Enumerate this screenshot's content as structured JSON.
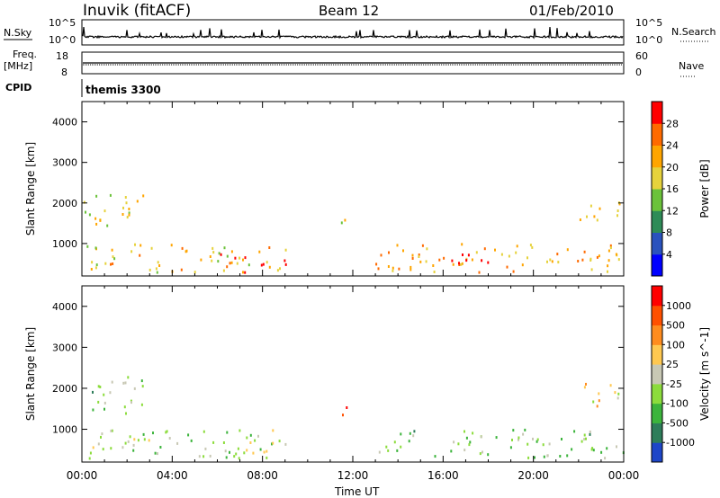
{
  "header": {
    "station": "Inuvik (fitACF)",
    "beam": "Beam 12",
    "date": "01/Feb/2010"
  },
  "nsky_panel": {
    "left_label": "N.Sky",
    "right_label": "N.Search",
    "left_ticks": [
      "10^5",
      "10^0"
    ],
    "right_ticks": [
      "10^5",
      "10^0"
    ]
  },
  "freq_panel": {
    "left_label_1": "Freq.",
    "left_label_2": "[MHz]",
    "right_label": "Nave",
    "left_ticks": [
      "18",
      "8"
    ],
    "right_ticks": [
      "60",
      "0"
    ]
  },
  "cpid_panel": {
    "label": "CPID",
    "value": "themis 3300"
  },
  "chart_data": [
    {
      "type": "heatmap",
      "title": "",
      "xlabel": "Time UT",
      "ylabel": "Slant Range [km]",
      "x_ticks": [
        "00:00",
        "04:00",
        "08:00",
        "12:00",
        "16:00",
        "20:00",
        "00:00"
      ],
      "y_ticks": [
        "1000",
        "2000",
        "3000",
        "4000"
      ],
      "ylim": [
        200,
        4500
      ],
      "colorbar_label": "Power [dB]",
      "colorbar_ticks": [
        "4",
        "8",
        "12",
        "16",
        "20",
        "24",
        "28"
      ],
      "colorbar_range": [
        0,
        32
      ],
      "colorbar_colors": [
        "#0000ff",
        "#2a52be",
        "#2e8b57",
        "#6bc23a",
        "#e6d23c",
        "#ffa500",
        "#ff6a00",
        "#ff0000"
      ],
      "scatter_regions": [
        {
          "t": [
            0.0,
            2.7
          ],
          "r": [
            1350,
            2300
          ],
          "v": 18
        },
        {
          "t": [
            0.0,
            9.0
          ],
          "r": [
            250,
            950
          ],
          "v": 20
        },
        {
          "t": [
            6.0,
            9.0
          ],
          "r": [
            250,
            700
          ],
          "v": 28
        },
        {
          "t": [
            11.3,
            11.7
          ],
          "r": [
            1200,
            1700
          ],
          "v": 18
        },
        {
          "t": [
            13.0,
            24.0
          ],
          "r": [
            250,
            950
          ],
          "v": 22
        },
        {
          "t": [
            15.5,
            18.0
          ],
          "r": [
            250,
            800
          ],
          "v": 28
        },
        {
          "t": [
            22.0,
            24.0
          ],
          "r": [
            1500,
            2100
          ],
          "v": 16
        }
      ]
    },
    {
      "type": "heatmap",
      "title": "",
      "xlabel": "Time UT",
      "ylabel": "Slant Range [km]",
      "x_ticks": [
        "00:00",
        "04:00",
        "08:00",
        "12:00",
        "16:00",
        "20:00",
        "00:00"
      ],
      "y_ticks": [
        "1000",
        "2000",
        "3000",
        "4000"
      ],
      "ylim": [
        200,
        4500
      ],
      "colorbar_label": "Velocity [m s^-1]",
      "colorbar_ticks": [
        "1000",
        "500",
        "100",
        "25",
        "-25",
        "-100",
        "-500",
        "-1000"
      ],
      "colorbar_range": [
        -1000,
        1000
      ],
      "colorbar_colors": [
        "#1e46c8",
        "#2e7d5a",
        "#3cb43c",
        "#8cdc3c",
        "#c8c8b4",
        "#ffc850",
        "#ff8c1e",
        "#ff5000",
        "#ff0000"
      ],
      "scatter_regions": [
        {
          "t": [
            0.0,
            2.7
          ],
          "r": [
            1350,
            2300
          ],
          "v": -300
        },
        {
          "t": [
            0.0,
            9.0
          ],
          "r": [
            250,
            950
          ],
          "v": -150
        },
        {
          "t": [
            6.0,
            9.0
          ],
          "r": [
            250,
            700
          ],
          "v": 50
        },
        {
          "t": [
            11.3,
            11.7
          ],
          "r": [
            1200,
            1700
          ],
          "v": 900
        },
        {
          "t": [
            13.0,
            24.0
          ],
          "r": [
            250,
            950
          ],
          "v": -250
        },
        {
          "t": [
            22.0,
            24.0
          ],
          "r": [
            1500,
            2100
          ],
          "v": 150
        }
      ]
    }
  ]
}
